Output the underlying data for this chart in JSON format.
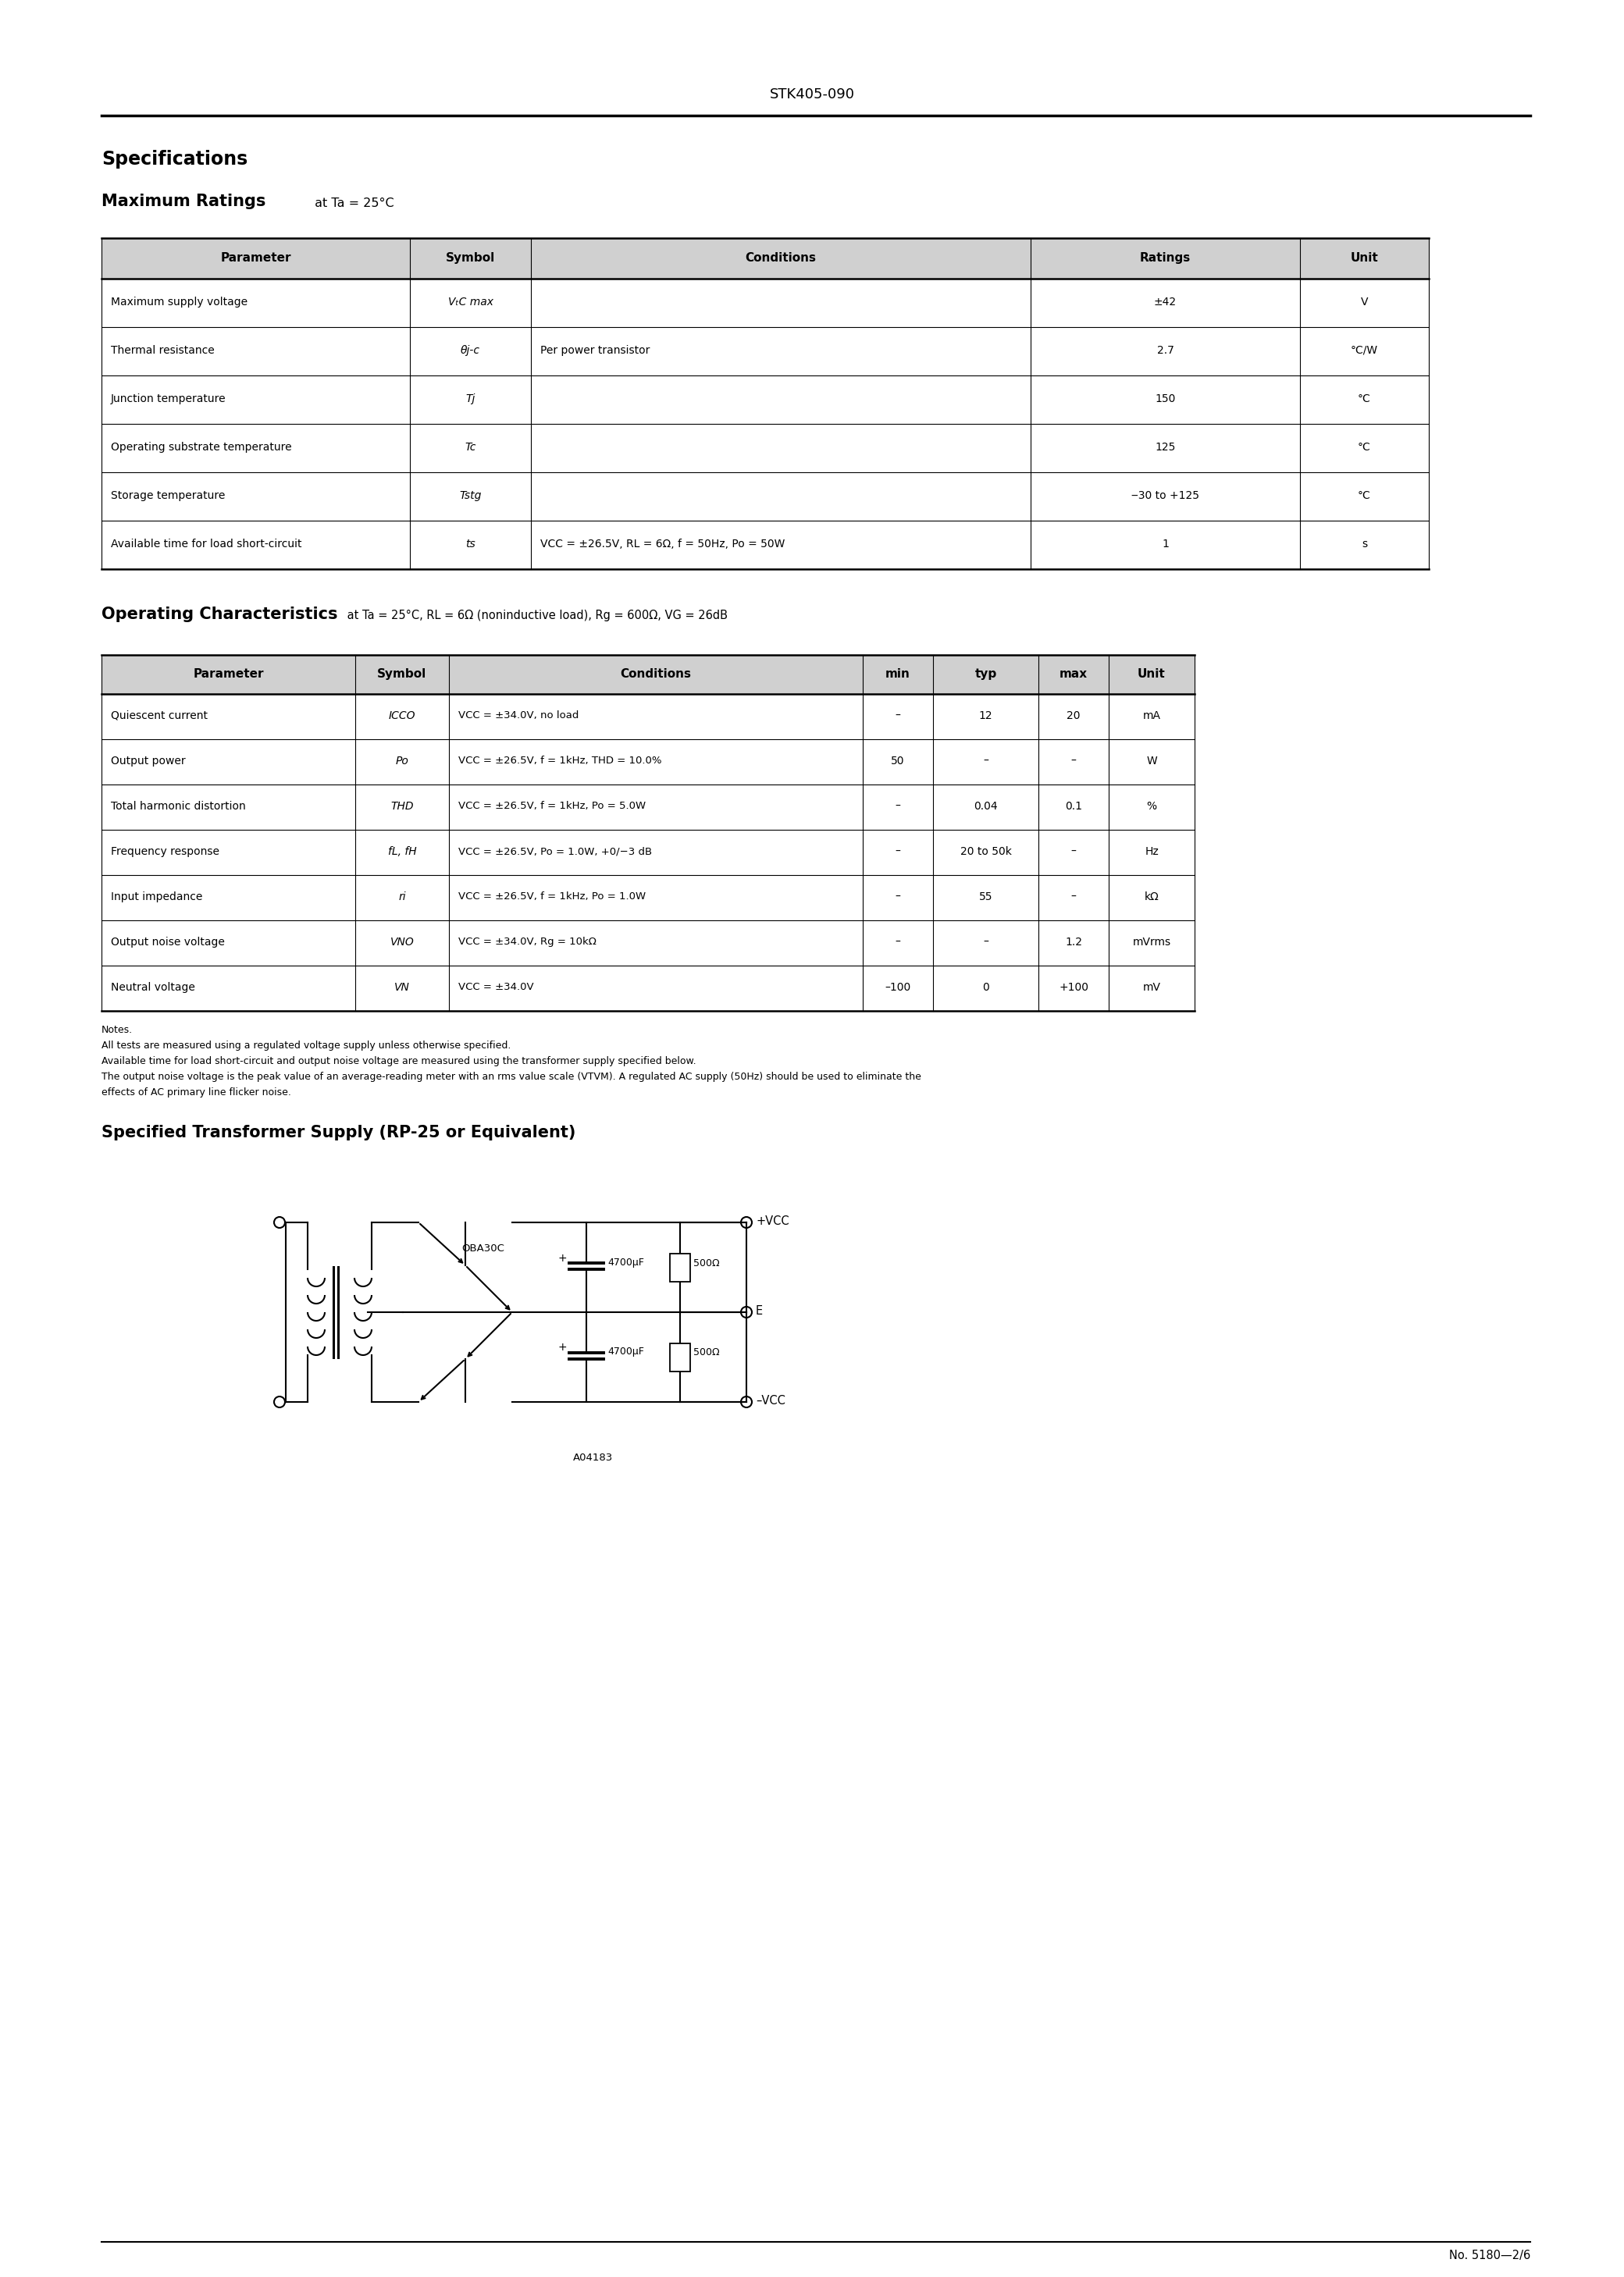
{
  "title": "STK405-090",
  "page_number": "No. 5180—2/6",
  "section1_title": "Specifications",
  "section2_title": "Maximum Ratings",
  "section2_subtitle": " at Ta = 25°C",
  "max_ratings_headers": [
    "Parameter",
    "Symbol",
    "Conditions",
    "Ratings",
    "Unit"
  ],
  "max_ratings_col_widths": [
    395,
    155,
    640,
    345,
    165
  ],
  "max_ratings_rows": [
    [
      "Maximum supply voltage",
      "VₜC max",
      "",
      "±42",
      "V"
    ],
    [
      "Thermal resistance",
      "θj-c",
      "Per power transistor",
      "2.7",
      "°C/W"
    ],
    [
      "Junction temperature",
      "Tj",
      "",
      "150",
      "°C"
    ],
    [
      "Operating substrate temperature",
      "Tc",
      "",
      "125",
      "°C"
    ],
    [
      "Storage temperature",
      "Tstg",
      "",
      "‒30 to +125",
      "°C"
    ],
    [
      "Available time for load short-circuit",
      "ts",
      "VCC = ±26.5V, RL = 6Ω, f = 50Hz, Po = 50W",
      "1",
      "s"
    ]
  ],
  "section3_title": "Operating Characteristics",
  "section3_subtitle": " at Ta = 25°C, RL = 6Ω (noninductive load), Rg = 600Ω, VG = 26dB",
  "op_char_headers": [
    "Parameter",
    "Symbol",
    "Conditions",
    "min",
    "typ",
    "max",
    "Unit"
  ],
  "op_char_col_widths": [
    325,
    120,
    530,
    90,
    135,
    90,
    110
  ],
  "op_char_rows": [
    [
      "Quiescent current",
      "ICCO",
      "VCC = ±34.0V, no load",
      "–",
      "12",
      "20",
      "mA"
    ],
    [
      "Output power",
      "Po",
      "VCC = ±26.5V, f = 1kHz, THD = 10.0%",
      "50",
      "–",
      "–",
      "W"
    ],
    [
      "Total harmonic distortion",
      "THD",
      "VCC = ±26.5V, f = 1kHz, Po = 5.0W",
      "–",
      "0.04",
      "0.1",
      "%"
    ],
    [
      "Frequency response",
      "fL, fH",
      "VCC = ±26.5V, Po = 1.0W, +0/−3 dB",
      "–",
      "20 to 50k",
      "–",
      "Hz"
    ],
    [
      "Input impedance",
      "ri",
      "VCC = ±26.5V, f = 1kHz, Po = 1.0W",
      "–",
      "55",
      "–",
      "kΩ"
    ],
    [
      "Output noise voltage",
      "VNO",
      "VCC = ±34.0V, Rg = 10kΩ",
      "–",
      "–",
      "1.2",
      "mVrms"
    ],
    [
      "Neutral voltage",
      "VN",
      "VCC = ±34.0V",
      "–100",
      "0",
      "+100",
      "mV"
    ]
  ],
  "notes": [
    "Notes.",
    "All tests are measured using a regulated voltage supply unless otherwise specified.",
    "Available time for load short-circuit and output noise voltage are measured using the transformer supply specified below.",
    "The output noise voltage is the peak value of an average-reading meter with an rms value scale (VTVM). A regulated AC supply (50Hz) should be used to eliminate the",
    "effects of AC primary line flicker noise."
  ],
  "transformer_title": "Specified Transformer Supply (RP-25 or Equivalent)"
}
